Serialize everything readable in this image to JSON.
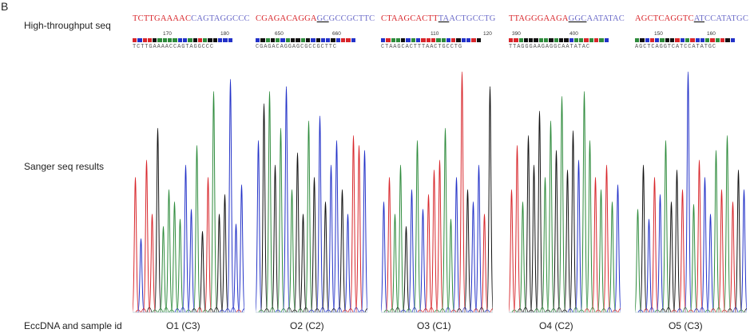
{
  "panel_letter": "B",
  "row_labels": {
    "high_throughput": "High-throughput seq",
    "sanger": "Sanger seq results",
    "eccdna": "EccDNA and sample id"
  },
  "base_colors": {
    "A": "#2e8b3c",
    "C": "#2332c8",
    "G": "#111111",
    "T": "#d8262b"
  },
  "samples": [
    {
      "id": "O1 (C3)",
      "seq_red": "TCTTGAAAAC",
      "seq_blue_under": "",
      "seq_blue": "CAGTAGGCCC",
      "ticks": [
        "170",
        "180"
      ],
      "bases": "TCTTGAAAACCAGTAGGCCC"
    },
    {
      "id": "O2 (C2)",
      "seq_red": "CGAGACAGGA",
      "seq_blue_under": "GC",
      "seq_blue": "GCCGCTTC",
      "ticks": [
        "650",
        "660"
      ],
      "bases": "CGAGACAGGAGCGCCGCTTC"
    },
    {
      "id": "O3 (C1)",
      "seq_red": "CTAAGCACTT",
      "seq_blue_under": "TA",
      "seq_blue": "ACTGCCTG",
      "ticks": [
        "110",
        "120"
      ],
      "bases": "CTAAGCACTTTAACTGCCTG"
    },
    {
      "id": "O4 (C2)",
      "seq_red": "TTAGGGAAGA",
      "seq_blue_under": "GGC",
      "seq_blue": "AATATAC",
      "ticks": [
        "390",
        "400"
      ],
      "bases": "TTAGGGAAGAGGCAATATAC"
    },
    {
      "id": "O5 (C3)",
      "seq_red": "AGCTCAGGTC",
      "seq_blue_under": "AT",
      "seq_blue": "CCATATGC",
      "ticks": [
        "150",
        "160"
      ],
      "bases": "AGCTCAGGTCATCCATATGC"
    }
  ]
}
